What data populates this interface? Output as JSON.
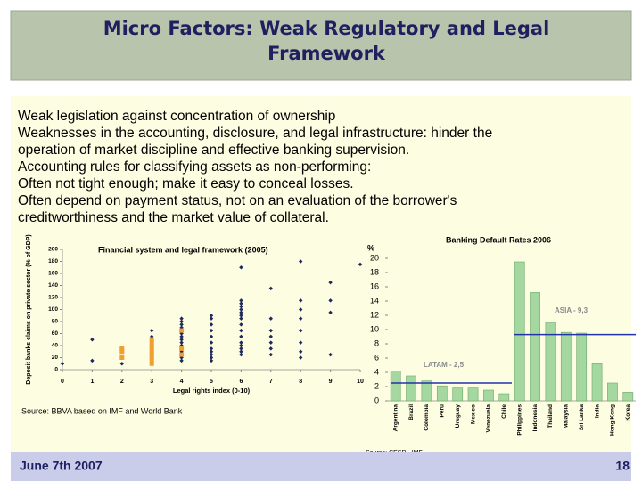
{
  "header": {
    "title": [
      "Micro Factors: Weak Regulatory and Legal",
      "Framework"
    ]
  },
  "body": {
    "lines": [
      "Weak legislation against concentration of ownership",
      "Weaknesses in the accounting, disclosure, and legal infrastructure: hinder the",
      "operation of market discipline and effective banking supervision.",
      "Accounting rules for classifying assets as non-performing:",
      "Often not tight enough; make it easy to conceal losses.",
      "Often depend on payment status, not on an evaluation of the borrower's",
      "creditworthiness and the market value of collateral."
    ]
  },
  "chart_data": [
    {
      "type": "scatter",
      "title": "Financial system and legal framework (2005)",
      "ylabel": "Deposit banks claims on private sector (% of GDP)",
      "xlabel": "Legal rights index (0-10)",
      "source": "Source: BBVA based on IMF and World Bank",
      "xlim": [
        0,
        10
      ],
      "xticks": [
        0,
        1,
        2,
        3,
        4,
        5,
        6,
        7,
        8,
        9,
        10
      ],
      "ylim": [
        0,
        200
      ],
      "yticks": [
        0,
        20,
        40,
        60,
        80,
        100,
        120,
        140,
        160,
        180,
        200
      ],
      "series": [
        {
          "color": "#1f2a5a",
          "x": [
            0,
            1,
            1,
            2,
            2,
            3,
            3,
            3,
            3,
            3,
            3,
            3,
            3,
            3,
            3,
            4,
            4,
            4,
            4,
            4,
            4,
            4,
            4,
            4,
            4,
            4,
            4,
            4,
            5,
            5,
            5,
            5,
            5,
            5,
            5,
            5,
            5,
            5,
            5,
            6,
            6,
            6,
            6,
            6,
            6,
            6,
            6,
            6,
            6,
            6,
            6,
            6,
            6,
            6,
            6,
            7,
            7,
            7,
            7,
            7,
            7,
            7,
            8,
            8,
            8,
            8,
            8,
            8,
            8,
            8,
            9,
            9,
            9,
            9,
            10
          ],
          "values": [
            10,
            50,
            15,
            10,
            20,
            65,
            55,
            45,
            40,
            35,
            30,
            25,
            20,
            15,
            10,
            85,
            80,
            75,
            70,
            60,
            55,
            50,
            45,
            40,
            35,
            30,
            20,
            15,
            90,
            85,
            75,
            65,
            55,
            45,
            35,
            30,
            25,
            20,
            15,
            170,
            115,
            110,
            105,
            100,
            95,
            90,
            85,
            75,
            65,
            55,
            45,
            40,
            35,
            30,
            25,
            135,
            85,
            65,
            55,
            45,
            35,
            25,
            180,
            115,
            100,
            85,
            65,
            45,
            30,
            20,
            145,
            115,
            95,
            25,
            175
          ]
        },
        {
          "color": "#f0a030",
          "x": [
            2,
            2,
            2,
            3,
            3,
            3,
            3,
            3,
            3,
            3,
            3,
            3,
            4,
            4,
            4
          ],
          "values": [
            35,
            30,
            20,
            50,
            45,
            40,
            35,
            30,
            25,
            20,
            15,
            10,
            65,
            35,
            25
          ]
        }
      ]
    },
    {
      "type": "bar",
      "title": "Banking Default Rates 2006",
      "ylabel": "%",
      "source": "Source: CESR - IMF",
      "color": "#a5d8a0",
      "categories": [
        "Argentina",
        "Brazil",
        "Colombia",
        "Peru",
        "Uruguay",
        "Mexico",
        "Venezuela",
        "Chile",
        "Philippines",
        "Indonesia",
        "Thailand",
        "Malaysia",
        "Sri Lanka",
        "India",
        "Hong Kong",
        "Korea"
      ],
      "values": [
        4.2,
        3.5,
        2.8,
        2.1,
        1.8,
        1.8,
        1.5,
        1.0,
        19.5,
        15.2,
        11,
        9.6,
        9.5,
        5.2,
        2.5,
        1.2
      ],
      "ylim": [
        0,
        20
      ],
      "yticks": [
        0,
        2,
        4,
        6,
        8,
        10,
        12,
        14,
        16,
        18,
        20
      ],
      "averages": [
        {
          "label": "LATAM - 2,5",
          "value": 2.5
        },
        {
          "label": "ASIA - 9,3",
          "value": 9.3
        }
      ]
    }
  ],
  "footer": {
    "date": "June 7th 2007",
    "page": "18"
  }
}
